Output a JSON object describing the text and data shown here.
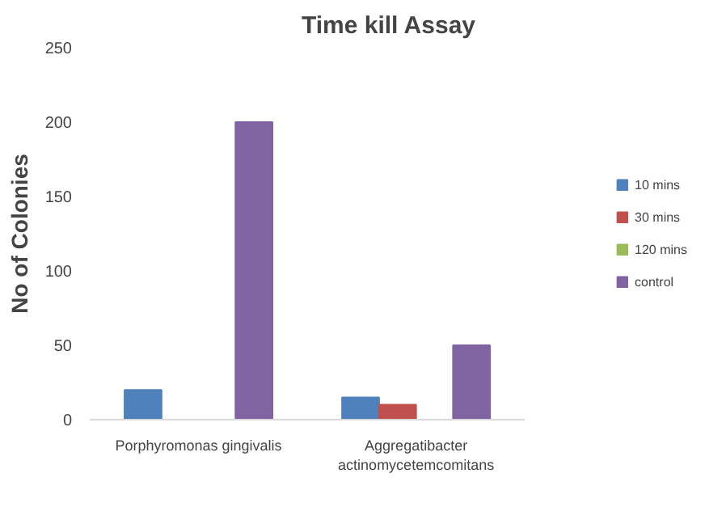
{
  "chart_data": {
    "type": "bar",
    "title": "Time kill Assay",
    "ylabel": "No of Colonies",
    "categories": [
      "Porphyromonas gingivalis",
      "Aggregatibacter actinomycetemcomitans"
    ],
    "series": [
      {
        "name": "10 mins",
        "color": "#4f81bd",
        "values": [
          20,
          15
        ]
      },
      {
        "name": "30 mins",
        "color": "#c0504d",
        "values": [
          0,
          10
        ]
      },
      {
        "name": "120 mins",
        "color": "#9bbb59",
        "values": [
          0,
          0
        ]
      },
      {
        "name": "control",
        "color": "#8064a2",
        "values": [
          200,
          50
        ]
      }
    ],
    "ylim": [
      0,
      250
    ],
    "yticks": [
      0,
      50,
      100,
      150,
      200,
      250
    ],
    "legend": "right"
  }
}
